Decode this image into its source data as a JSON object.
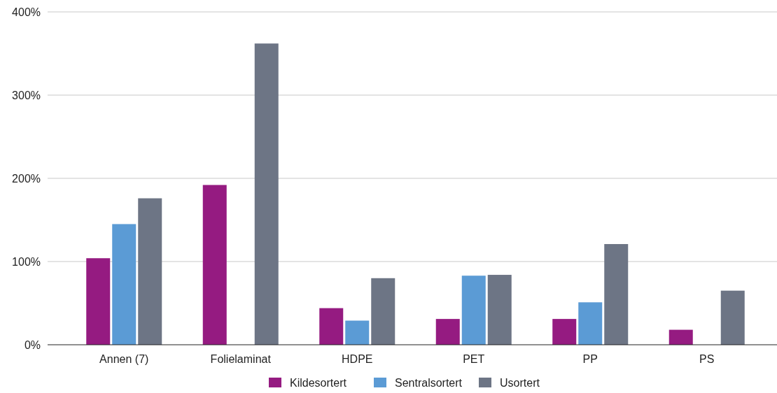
{
  "chart_data": {
    "type": "bar",
    "categories": [
      "Annen (7)",
      "Folielaminat",
      "HDPE",
      "PET",
      "PP",
      "PS"
    ],
    "series": [
      {
        "name": "Kildesortert",
        "color": "#951b81",
        "values": [
          104,
          192,
          44,
          31,
          31,
          18
        ]
      },
      {
        "name": "Sentralsortert",
        "color": "#5b9bd5",
        "values": [
          145,
          null,
          29,
          83,
          51,
          null
        ]
      },
      {
        "name": "Usortert",
        "color": "#6d7585",
        "values": [
          176,
          362,
          80,
          84,
          121,
          65
        ]
      }
    ],
    "ylim": [
      0,
      400
    ],
    "yticks": [
      {
        "value": 0,
        "label": "0%"
      },
      {
        "value": 100,
        "label": "100%"
      },
      {
        "value": 200,
        "label": "200%"
      },
      {
        "value": 300,
        "label": "300%"
      },
      {
        "value": 400,
        "label": "400%"
      }
    ],
    "grid": "y",
    "legend": "bottom"
  }
}
